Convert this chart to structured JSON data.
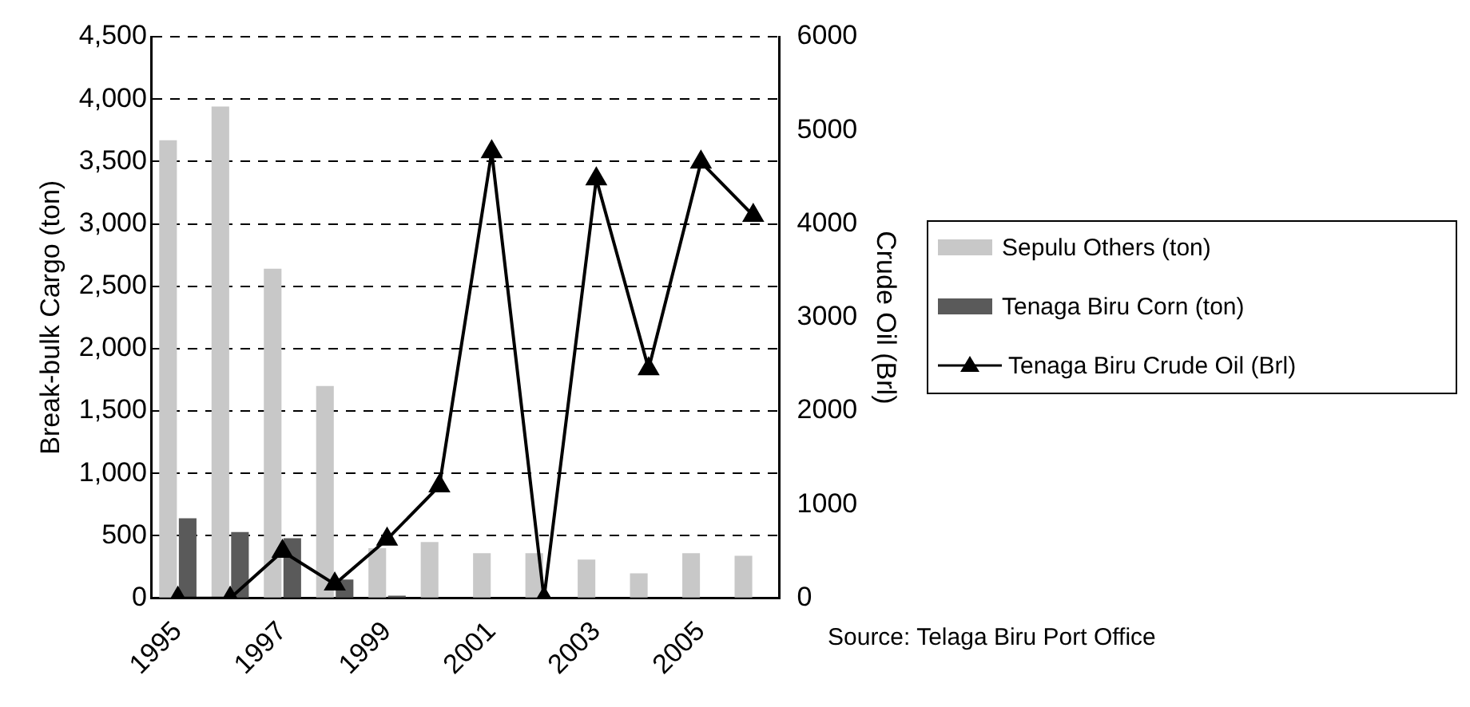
{
  "chart_data": {
    "type": "bar",
    "categories": [
      "1995",
      null,
      "1997",
      null,
      "1999",
      null,
      "2001",
      null,
      "2003",
      null,
      "2005",
      null
    ],
    "ylabel": "Break-bulk Cargo (ton)",
    "y2label": "Crude Oil (Brl)",
    "series": [
      {
        "name": "Sepulu Others (ton)",
        "color": "#c8c8c8",
        "values": [
          3670,
          3940,
          2640,
          1700,
          400,
          450,
          360,
          360,
          310,
          200,
          360,
          340
        ]
      },
      {
        "name": "Tenaga Biru Corn (ton)",
        "color": "#5a5a5a",
        "values": [
          640,
          530,
          480,
          150,
          20,
          0,
          0,
          0,
          0,
          0,
          0,
          0
        ]
      },
      {
        "name": "Tenaga Biru Crude Oil (Brl)",
        "type": "line",
        "axis": "y2",
        "color": "#000000",
        "values": [
          0,
          0,
          500,
          150,
          630,
          1200,
          4770,
          0,
          4480,
          2450,
          4660,
          4090
        ]
      }
    ],
    "ylim": [
      0,
      4500
    ],
    "yticks": [
      {
        "value": 0,
        "label": "0"
      },
      {
        "value": 500,
        "label": "500"
      },
      {
        "value": 1000,
        "label": "1,000"
      },
      {
        "value": 1500,
        "label": "1,500"
      },
      {
        "value": 2000,
        "label": "2,000"
      },
      {
        "value": 2500,
        "label": "2,500"
      },
      {
        "value": 3000,
        "label": "3,000"
      },
      {
        "value": 3500,
        "label": "3,500"
      },
      {
        "value": 4000,
        "label": "4,000"
      },
      {
        "value": 4500,
        "label": "4,500"
      }
    ],
    "y2lim": [
      0,
      6000
    ],
    "y2ticks": [
      0,
      1000,
      2000,
      3000,
      4000,
      5000,
      6000
    ],
    "grid": "y",
    "legend": "right",
    "marker": "triangle",
    "line_style": "solid",
    "annotations": [
      "Source: Telaga Biru Port Office"
    ]
  }
}
